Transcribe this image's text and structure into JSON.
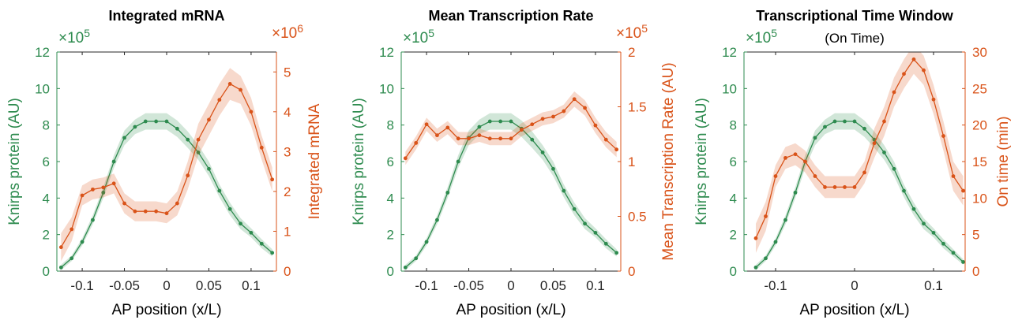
{
  "colors": {
    "left": "#2e8b4f",
    "right": "#d95319",
    "axis": "#262626"
  },
  "chart_data": [
    {
      "type": "line",
      "title": "Integrated mRNA",
      "subtitle": "",
      "xlabel": "AP position (x/L)",
      "ylabel_left": "Knirps protein (AU)",
      "ylabel_right": "Integrated mRNA",
      "xlim": [
        -0.13,
        0.13
      ],
      "xticks": [
        -0.1,
        -0.05,
        0,
        0.05,
        0.1
      ],
      "xtick_labels": [
        "-0.1",
        "-0.05",
        "0",
        "0.05",
        "0.1"
      ],
      "ylim_left": [
        0,
        1200000
      ],
      "yticks_left": [
        0,
        200000,
        400000,
        600000,
        800000,
        1000000,
        1200000
      ],
      "ytick_labels_left": [
        "0",
        "2",
        "4",
        "6",
        "8",
        "10",
        "12"
      ],
      "exponent_left": "×10^5",
      "ylim_right": [
        0,
        5500000
      ],
      "yticks_right": [
        0,
        1000000,
        2000000,
        3000000,
        4000000,
        5000000
      ],
      "ytick_labels_right": [
        "0",
        "1",
        "2",
        "3",
        "4",
        "5"
      ],
      "exponent_right": "×10^6",
      "series": [
        {
          "axis": "left",
          "x": [
            -0.125,
            -0.1125,
            -0.1,
            -0.0875,
            -0.075,
            -0.0625,
            -0.05,
            -0.0375,
            -0.025,
            -0.0125,
            0,
            0.0125,
            0.025,
            0.0375,
            0.05,
            0.0625,
            0.075,
            0.0875,
            0.1,
            0.1125,
            0.125
          ],
          "y": [
            20000,
            70000,
            160000,
            280000,
            430000,
            600000,
            730000,
            790000,
            820000,
            820000,
            820000,
            780000,
            720000,
            650000,
            560000,
            440000,
            340000,
            260000,
            210000,
            150000,
            100000
          ],
          "band": [
            15000,
            15000,
            20000,
            25000,
            30000,
            35000,
            40000,
            40000,
            45000,
            45000,
            45000,
            45000,
            45000,
            40000,
            40000,
            35000,
            35000,
            30000,
            25000,
            25000,
            20000
          ]
        },
        {
          "axis": "right",
          "x": [
            -0.125,
            -0.1125,
            -0.1,
            -0.0875,
            -0.075,
            -0.0625,
            -0.05,
            -0.0375,
            -0.025,
            -0.0125,
            0,
            0.0125,
            0.025,
            0.0375,
            0.05,
            0.0625,
            0.075,
            0.0875,
            0.1,
            0.1125,
            0.125
          ],
          "y": [
            600000,
            1050000,
            1900000,
            2050000,
            2100000,
            2200000,
            1700000,
            1500000,
            1500000,
            1500000,
            1450000,
            1700000,
            2400000,
            3300000,
            3800000,
            4300000,
            4700000,
            4550000,
            4000000,
            3100000,
            2300000
          ],
          "band": [
            350000,
            300000,
            250000,
            250000,
            250000,
            250000,
            250000,
            250000,
            250000,
            250000,
            250000,
            300000,
            350000,
            400000,
            400000,
            400000,
            400000,
            350000,
            350000,
            300000,
            300000
          ]
        }
      ]
    },
    {
      "type": "line",
      "title": "Mean Transcription Rate",
      "subtitle": "",
      "xlabel": "AP position (x/L)",
      "ylabel_left": "Knirps protein (AU)",
      "ylabel_right": "Mean Transcription Rate (AU)",
      "xlim": [
        -0.13,
        0.13
      ],
      "xticks": [
        -0.1,
        -0.05,
        0,
        0.05,
        0.1
      ],
      "xtick_labels": [
        "-0.1",
        "-0.05",
        "0",
        "0.05",
        "0.1"
      ],
      "ylim_left": [
        0,
        1200000
      ],
      "yticks_left": [
        0,
        200000,
        400000,
        600000,
        800000,
        1000000,
        1200000
      ],
      "ytick_labels_left": [
        "0",
        "2",
        "4",
        "6",
        "8",
        "10",
        "12"
      ],
      "exponent_left": "×10^5",
      "ylim_right": [
        0,
        200000
      ],
      "yticks_right": [
        0,
        50000,
        100000,
        150000,
        200000
      ],
      "ytick_labels_right": [
        "0",
        "0.5",
        "1",
        "1.5",
        "2"
      ],
      "exponent_right": "×10^5",
      "series": [
        {
          "axis": "left",
          "x": [
            -0.125,
            -0.1125,
            -0.1,
            -0.0875,
            -0.075,
            -0.0625,
            -0.05,
            -0.0375,
            -0.025,
            -0.0125,
            0,
            0.0125,
            0.025,
            0.0375,
            0.05,
            0.0625,
            0.075,
            0.0875,
            0.1,
            0.1125,
            0.125
          ],
          "y": [
            20000,
            70000,
            160000,
            280000,
            430000,
            600000,
            730000,
            790000,
            820000,
            820000,
            820000,
            780000,
            720000,
            650000,
            560000,
            440000,
            340000,
            260000,
            210000,
            150000,
            100000
          ],
          "band": [
            15000,
            15000,
            20000,
            25000,
            30000,
            35000,
            40000,
            40000,
            45000,
            45000,
            45000,
            45000,
            45000,
            40000,
            40000,
            35000,
            35000,
            30000,
            25000,
            25000,
            20000
          ]
        },
        {
          "axis": "right",
          "x": [
            -0.125,
            -0.1125,
            -0.1,
            -0.0875,
            -0.075,
            -0.0625,
            -0.05,
            -0.0375,
            -0.025,
            -0.0125,
            0,
            0.0125,
            0.025,
            0.0375,
            0.05,
            0.0625,
            0.075,
            0.0875,
            0.1,
            0.1125,
            0.125
          ],
          "y": [
            103000,
            117000,
            134000,
            124000,
            131000,
            121000,
            121000,
            124000,
            121000,
            121000,
            121000,
            129000,
            134000,
            139000,
            141000,
            146000,
            157000,
            149000,
            133000,
            120000,
            111000
          ],
          "band": [
            6000,
            6000,
            6000,
            6000,
            6000,
            6000,
            6000,
            6000,
            6000,
            6000,
            6000,
            6000,
            6000,
            6000,
            6000,
            6000,
            7000,
            7000,
            7000,
            7000,
            7000
          ]
        }
      ]
    },
    {
      "type": "line",
      "title": "Transcriptional Time Window",
      "subtitle": "(On Time)",
      "xlabel": "AP position (x/L)",
      "ylabel_left": "Knirps protein (AU)",
      "ylabel_right": "On time (min)",
      "xlim": [
        -0.14,
        0.14
      ],
      "xticks": [
        -0.1,
        0,
        0.1
      ],
      "xtick_labels": [
        "-0.1",
        "0",
        "0.1"
      ],
      "ylim_left": [
        0,
        1200000
      ],
      "yticks_left": [
        0,
        200000,
        400000,
        600000,
        800000,
        1000000,
        1200000
      ],
      "ytick_labels_left": [
        "0",
        "2",
        "4",
        "6",
        "8",
        "10",
        "12"
      ],
      "exponent_left": "×10^5",
      "ylim_right": [
        0,
        30
      ],
      "yticks_right": [
        0,
        5,
        10,
        15,
        20,
        25,
        30
      ],
      "ytick_labels_right": [
        "0",
        "5",
        "10",
        "15",
        "20",
        "25",
        "30"
      ],
      "exponent_right": "",
      "series": [
        {
          "axis": "left",
          "x": [
            -0.125,
            -0.1125,
            -0.1,
            -0.0875,
            -0.075,
            -0.0625,
            -0.05,
            -0.0375,
            -0.025,
            -0.0125,
            0,
            0.0125,
            0.025,
            0.0375,
            0.05,
            0.0625,
            0.075,
            0.0875,
            0.1,
            0.1125,
            0.125,
            0.1375
          ],
          "y": [
            20000,
            70000,
            160000,
            280000,
            430000,
            600000,
            730000,
            790000,
            820000,
            820000,
            820000,
            780000,
            720000,
            650000,
            560000,
            440000,
            340000,
            260000,
            210000,
            150000,
            100000,
            50000
          ],
          "band": [
            15000,
            15000,
            20000,
            25000,
            30000,
            35000,
            40000,
            40000,
            45000,
            45000,
            45000,
            45000,
            45000,
            40000,
            40000,
            35000,
            35000,
            30000,
            25000,
            25000,
            20000,
            15000
          ]
        },
        {
          "axis": "right",
          "x": [
            -0.125,
            -0.1125,
            -0.1,
            -0.0875,
            -0.075,
            -0.0625,
            -0.05,
            -0.0375,
            -0.025,
            -0.0125,
            0,
            0.0125,
            0.025,
            0.0375,
            0.05,
            0.0625,
            0.075,
            0.0875,
            0.1,
            0.1125,
            0.125,
            0.1375
          ],
          "y": [
            4.5,
            7.5,
            13,
            15.5,
            16,
            15,
            13,
            11.5,
            11.5,
            11.5,
            11.5,
            13.5,
            17.5,
            20.5,
            24.5,
            27,
            29,
            27.5,
            23.5,
            18.5,
            13,
            11
          ],
          "band": [
            2,
            2,
            1.5,
            1.5,
            1.5,
            1.5,
            1.5,
            1.5,
            1.5,
            1.5,
            1.5,
            1.5,
            2,
            2,
            2,
            2,
            2,
            2,
            2,
            2,
            2,
            2
          ]
        }
      ]
    }
  ]
}
